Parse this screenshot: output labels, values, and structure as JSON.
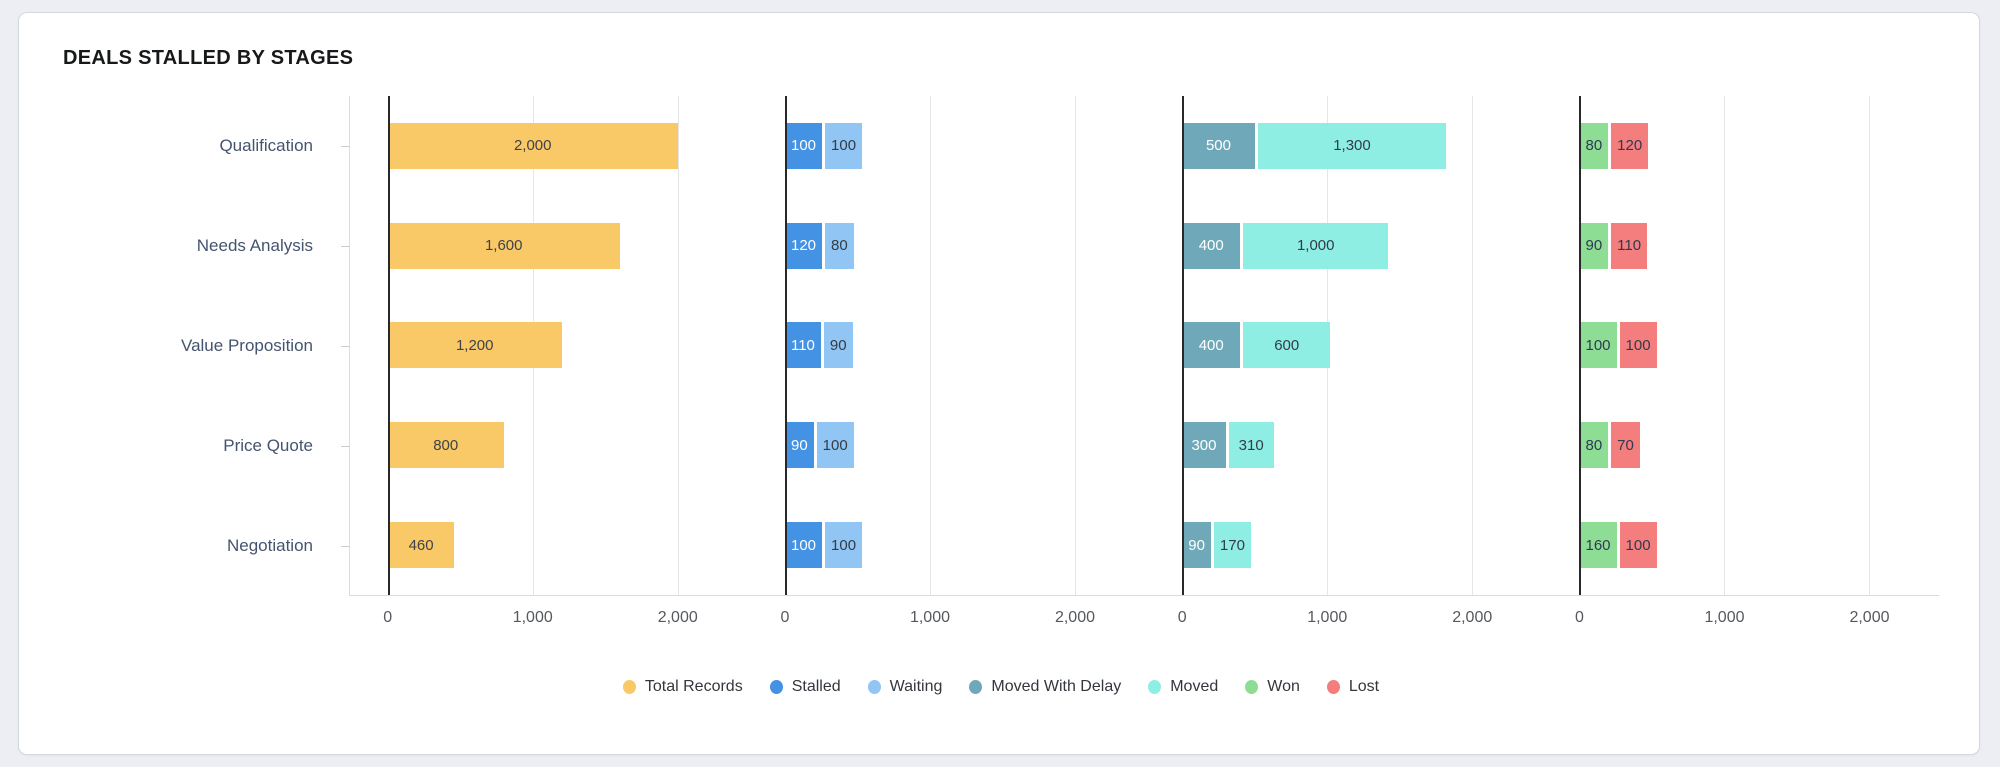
{
  "card": {
    "title": "DEALS STALLED BY STAGES"
  },
  "colors": {
    "background": "#eceef3",
    "card": "#ffffff",
    "zero_axis": "#26282b",
    "gridline": "#e4e6ea",
    "axis_boundary": "#d9dce1",
    "category_label": "#44546e",
    "tick_label": "#55585e"
  },
  "chart_data": {
    "type": "bar",
    "orientation": "horizontal",
    "title": "DEALS STALLED BY STAGES",
    "categories": [
      "Qualification",
      "Needs Analysis",
      "Value Proposition",
      "Price Quote",
      "Negotiation"
    ],
    "panels": [
      {
        "name": "total-records",
        "series": [
          {
            "name": "Total Records",
            "color": "#F9C867",
            "label_color": "#3F4347",
            "values": [
              2000,
              1600,
              1200,
              800,
              460
            ],
            "labels": [
              "2,000",
              "1,600",
              "1,200",
              "800",
              "460"
            ]
          }
        ]
      },
      {
        "name": "stalled-waiting",
        "series": [
          {
            "name": "Stalled",
            "color": "#4392E4",
            "label_color": "#FFFFFF",
            "values": [
              100,
              120,
              110,
              90,
              100
            ],
            "labels": [
              "100",
              "120",
              "110",
              "90",
              "100"
            ]
          },
          {
            "name": "Waiting",
            "color": "#91C5F3",
            "label_color": "#333C46",
            "values": [
              100,
              80,
              90,
              100,
              100
            ],
            "labels": [
              "100",
              "80",
              "90",
              "100",
              "100"
            ]
          }
        ]
      },
      {
        "name": "moved-with-delay-moved",
        "series": [
          {
            "name": "Moved With Delay",
            "color": "#6FA9B9",
            "label_color": "#FFFFFF",
            "values": [
              500,
              400,
              400,
              300,
              90
            ],
            "labels": [
              "500",
              "400",
              "400",
              "300",
              "90"
            ]
          },
          {
            "name": "Moved",
            "color": "#8FEEE4",
            "label_color": "#333C46",
            "values": [
              1300,
              1000,
              600,
              310,
              170
            ],
            "labels": [
              "1,300",
              "1,000",
              "600",
              "310",
              "170"
            ]
          }
        ]
      },
      {
        "name": "won-lost",
        "series": [
          {
            "name": "Won",
            "color": "#8EDD95",
            "label_color": "#2F3A50",
            "values": [
              80,
              90,
              100,
              80,
              160
            ],
            "labels": [
              "80",
              "90",
              "100",
              "80",
              "160"
            ]
          },
          {
            "name": "Lost",
            "color": "#F47D7D",
            "label_color": "#2F3A50",
            "values": [
              120,
              110,
              100,
              70,
              100
            ],
            "labels": [
              "120",
              "110",
              "100",
              "70",
              "100"
            ]
          }
        ]
      }
    ],
    "x_ticks": [
      "0",
      "1,000",
      "2,000"
    ],
    "axis_max_units": 2000,
    "zero_offset_percent": 9.5,
    "unit_percent_per_1000": 36.5,
    "grid": true,
    "legend_position": "bottom",
    "legend": [
      {
        "label": "Total Records",
        "color": "#F9C867"
      },
      {
        "label": "Stalled",
        "color": "#4392E4"
      },
      {
        "label": "Waiting",
        "color": "#91C5F3"
      },
      {
        "label": "Moved With Delay",
        "color": "#6FA9B9"
      },
      {
        "label": "Moved",
        "color": "#8FEEE4"
      },
      {
        "label": "Won",
        "color": "#8EDD95"
      },
      {
        "label": "Lost",
        "color": "#F47D7D"
      }
    ]
  }
}
